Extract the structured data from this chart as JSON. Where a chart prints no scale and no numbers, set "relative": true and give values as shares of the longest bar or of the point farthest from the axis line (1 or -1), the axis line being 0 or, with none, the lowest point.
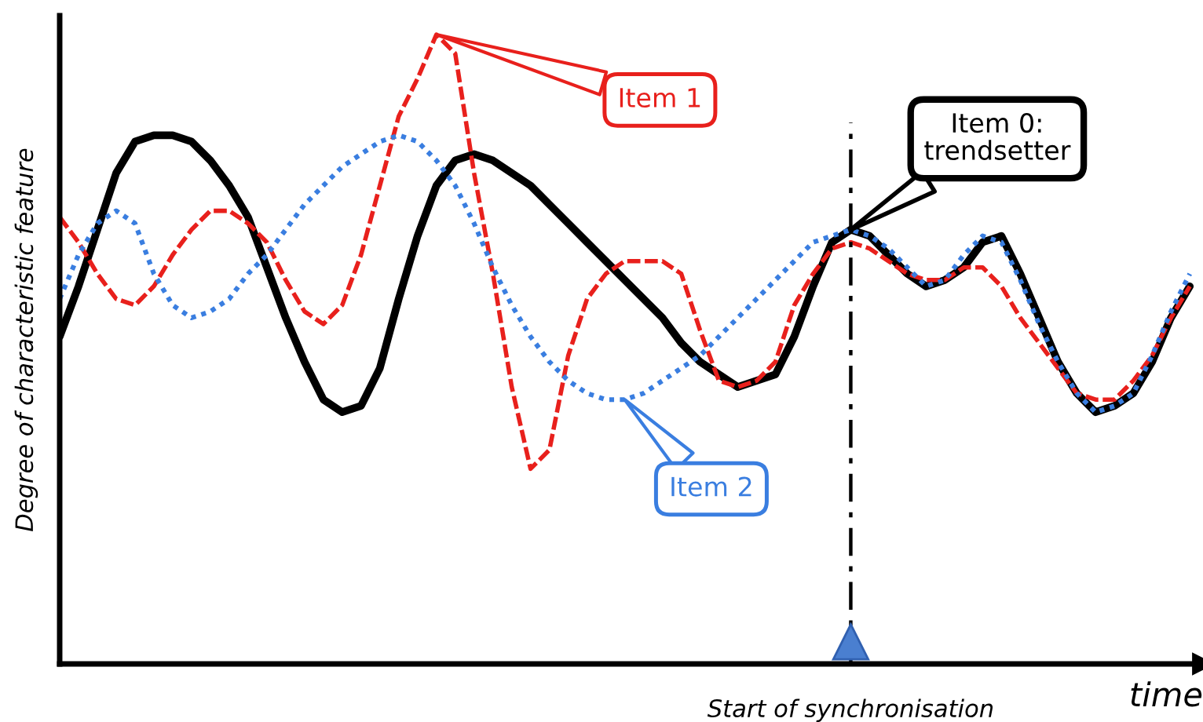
{
  "chart_data": {
    "type": "line",
    "relative": true,
    "xlabel": "time",
    "ylabel": "Degree of characteristic feature",
    "categories": [
      null,
      null,
      null,
      null,
      null,
      null,
      null,
      null,
      null,
      null,
      null,
      null,
      null,
      null,
      null,
      null,
      null,
      null,
      null,
      null,
      null,
      null,
      null,
      null,
      null,
      null,
      null,
      null,
      null,
      null,
      null,
      null,
      null,
      null,
      null,
      null,
      null,
      null,
      null,
      null,
      null,
      null,
      null,
      null,
      null,
      null,
      null,
      null,
      null,
      null,
      null,
      null,
      null,
      null,
      null,
      null,
      null,
      null,
      null,
      null,
      null
    ],
    "series": [
      {
        "name": "Item 0:\ntrendsetter",
        "color": "#000000",
        "line_style": "solid",
        "values": [
          0.52,
          0.6,
          0.69,
          0.78,
          0.83,
          0.84,
          0.84,
          0.83,
          0.8,
          0.76,
          0.71,
          0.63,
          0.55,
          0.48,
          0.42,
          0.4,
          0.41,
          0.47,
          0.58,
          0.68,
          0.76,
          0.8,
          0.81,
          0.8,
          0.78,
          0.76,
          0.73,
          0.7,
          0.67,
          0.64,
          0.61,
          0.58,
          0.55,
          0.51,
          0.48,
          0.46,
          0.44,
          0.45,
          0.46,
          0.52,
          0.6,
          0.67,
          0.69,
          0.68,
          0.65,
          0.62,
          0.6,
          0.61,
          0.63,
          0.67,
          0.68,
          0.62,
          0.55,
          0.48,
          0.43,
          0.4,
          0.41,
          0.43,
          0.48,
          0.55,
          0.6
        ]
      },
      {
        "name": "Item 1",
        "color": "#e8201c",
        "line_style": "dashed",
        "values": [
          0.71,
          0.67,
          0.62,
          0.58,
          0.57,
          0.6,
          0.65,
          0.69,
          0.72,
          0.72,
          0.7,
          0.67,
          0.61,
          0.56,
          0.54,
          0.57,
          0.65,
          0.76,
          0.87,
          0.93,
          1.0,
          0.97,
          0.78,
          0.62,
          0.44,
          0.31,
          0.34,
          0.49,
          0.58,
          0.62,
          0.64,
          0.64,
          0.64,
          0.62,
          0.53,
          0.45,
          0.44,
          0.45,
          0.48,
          0.57,
          0.62,
          0.66,
          0.67,
          0.66,
          0.64,
          0.62,
          0.61,
          0.61,
          0.63,
          0.63,
          0.6,
          0.55,
          0.51,
          0.47,
          0.43,
          0.42,
          0.42,
          0.45,
          0.49,
          0.55,
          0.6
        ]
      },
      {
        "name": "Item 2",
        "color": "#3a7ee0",
        "line_style": "dotted",
        "values": [
          0.58,
          0.65,
          0.7,
          0.72,
          0.7,
          0.62,
          0.57,
          0.55,
          0.56,
          0.58,
          0.62,
          0.65,
          0.69,
          0.73,
          0.76,
          0.79,
          0.81,
          0.83,
          0.84,
          0.83,
          0.8,
          0.76,
          0.7,
          0.63,
          0.57,
          0.52,
          0.48,
          0.45,
          0.43,
          0.42,
          0.42,
          0.43,
          0.45,
          0.47,
          0.49,
          0.52,
          0.55,
          0.58,
          0.61,
          0.64,
          0.67,
          0.68,
          0.69,
          0.68,
          0.66,
          0.63,
          0.6,
          0.61,
          0.65,
          0.68,
          0.67,
          0.61,
          0.54,
          0.48,
          0.43,
          0.4,
          0.41,
          0.43,
          0.49,
          0.56,
          0.62
        ]
      }
    ],
    "annotations": [
      "Start of synchronisation"
    ]
  }
}
